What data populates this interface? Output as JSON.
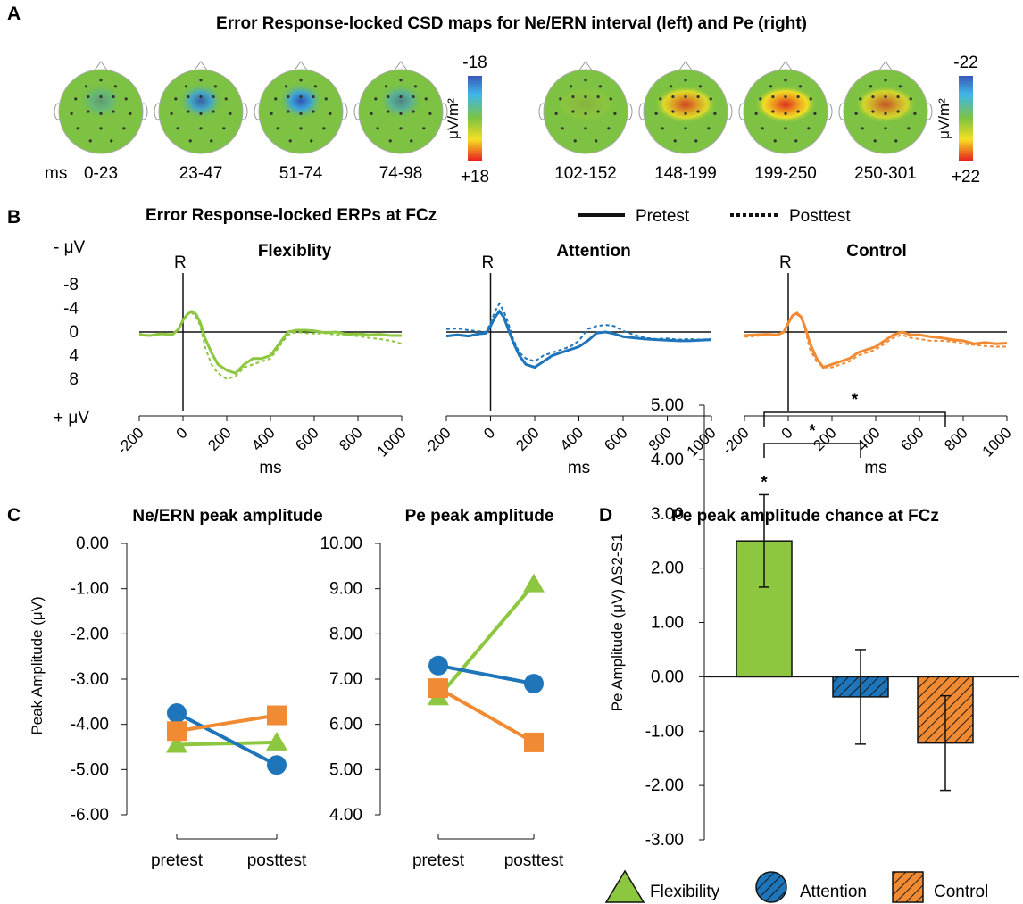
{
  "panel_a": {
    "letter": "A",
    "title": "Error Response-locked CSD maps for Ne/ERN interval (left) and Pe (right)",
    "time_unit": "ms",
    "colorbar_unit": "μV/m²",
    "ern_maps": {
      "labels": [
        "0-23",
        "23-47",
        "51-74",
        "74-98"
      ],
      "blob_strength": [
        0.35,
        0.85,
        0.95,
        0.55
      ],
      "colorbar_min": "-18",
      "colorbar_max": "+18"
    },
    "pe_maps": {
      "labels": [
        "102-152",
        "148-199",
        "199-250",
        "250-301"
      ],
      "blob_strength": [
        0.1,
        0.8,
        0.95,
        0.7
      ],
      "colorbar_min": "-22",
      "colorbar_max": "+22"
    }
  },
  "panel_b": {
    "letter": "B",
    "title": "Error Response-locked ERPs at FCz",
    "legend": {
      "pretest": "Pretest",
      "posttest": "Posttest"
    },
    "y_axis_top": "- μV",
    "y_axis_bottom": "+ μV",
    "response_marker": "R",
    "xlabel": "ms",
    "colors": {
      "flexibility": "#8dc63f",
      "attention": "#1f75b9",
      "control": "#f08a33"
    }
  },
  "panel_c": {
    "letter": "C",
    "ylabel": "Peak Amplitude (μV)",
    "colors": {
      "flexibility": "#8dc63f",
      "attention": "#1f75b9",
      "control": "#f08a33"
    }
  },
  "panel_d": {
    "letter": "D",
    "significance_marker": "*",
    "legend": [
      "Flexibility",
      "Attention",
      "Control"
    ],
    "colors": {
      "flexibility": "#8dc63f",
      "attention": "#1f75b9",
      "control": "#f08a33"
    }
  },
  "chart_data": [
    {
      "type": "line",
      "panel": "B",
      "title": "Flexiblity",
      "xlabel": "ms",
      "xticks": [
        -200,
        0,
        200,
        400,
        600,
        800,
        1000
      ],
      "yticks": [
        -8,
        -4,
        0,
        4,
        8
      ],
      "ylim": [
        -10,
        10
      ],
      "y_inverted": true,
      "series": [
        {
          "name": "Pretest",
          "style": "solid",
          "x": [
            -200,
            -150,
            -100,
            -50,
            -20,
            0,
            20,
            40,
            60,
            80,
            100,
            130,
            160,
            200,
            240,
            280,
            320,
            360,
            400,
            440,
            480,
            520,
            560,
            600,
            650,
            700,
            750,
            800,
            850,
            900,
            950,
            1000
          ],
          "y": [
            0.5,
            0.6,
            0.3,
            0.5,
            -0.5,
            -2.0,
            -3.0,
            -3.5,
            -3.0,
            -1.5,
            1.0,
            3.5,
            5.5,
            6.5,
            7.0,
            5.5,
            4.5,
            4.5,
            4.0,
            2.0,
            0.0,
            -0.3,
            -0.3,
            -0.2,
            0.1,
            0.0,
            0.4,
            0.3,
            0.5,
            0.4,
            0.6,
            0.6
          ]
        },
        {
          "name": "Posttest",
          "style": "dashed",
          "x": [
            -200,
            -150,
            -100,
            -50,
            -20,
            0,
            20,
            40,
            60,
            80,
            100,
            130,
            160,
            200,
            240,
            280,
            320,
            360,
            400,
            440,
            480,
            520,
            560,
            600,
            650,
            700,
            750,
            800,
            850,
            900,
            950,
            1000
          ],
          "y": [
            0.3,
            0.6,
            0.4,
            0.4,
            -0.5,
            -2.0,
            -3.0,
            -3.3,
            -2.5,
            -1.0,
            2.5,
            5.5,
            7.0,
            8.0,
            7.5,
            6.0,
            5.5,
            5.0,
            4.5,
            2.5,
            0.5,
            0.0,
            0.2,
            0.3,
            0.2,
            0.5,
            0.5,
            0.7,
            1.0,
            1.2,
            1.5,
            2.0
          ]
        }
      ]
    },
    {
      "type": "line",
      "panel": "B",
      "title": "Attention",
      "xlabel": "ms",
      "xticks": [
        -200,
        0,
        200,
        400,
        600,
        800,
        1000
      ],
      "yticks": [
        -8,
        -4,
        0,
        4,
        8
      ],
      "ylim": [
        -10,
        10
      ],
      "y_inverted": true,
      "series": [
        {
          "name": "Pretest",
          "style": "solid",
          "x": [
            -200,
            -150,
            -100,
            -50,
            -20,
            0,
            20,
            40,
            60,
            80,
            100,
            130,
            160,
            200,
            240,
            280,
            320,
            360,
            400,
            440,
            480,
            520,
            560,
            600,
            650,
            700,
            750,
            800,
            850,
            900,
            950,
            1000
          ],
          "y": [
            0.7,
            0.5,
            0.7,
            0.3,
            0.2,
            -1.0,
            -2.5,
            -3.5,
            -2.5,
            -0.5,
            1.5,
            4.0,
            5.5,
            6.0,
            5.0,
            4.0,
            3.5,
            3.0,
            2.5,
            1.5,
            0.2,
            0.0,
            0.3,
            0.8,
            1.0,
            1.2,
            1.3,
            1.4,
            1.5,
            1.5,
            1.4,
            1.3
          ]
        },
        {
          "name": "Posttest",
          "style": "dashed",
          "x": [
            -200,
            -150,
            -100,
            -50,
            -20,
            0,
            20,
            40,
            60,
            80,
            100,
            130,
            160,
            200,
            240,
            280,
            320,
            360,
            400,
            440,
            480,
            520,
            560,
            600,
            650,
            700,
            750,
            800,
            850,
            900,
            950,
            1000
          ],
          "y": [
            -0.5,
            -0.6,
            -0.3,
            -0.1,
            0.0,
            -1.5,
            -3.5,
            -4.8,
            -3.5,
            -1.5,
            1.0,
            3.5,
            4.5,
            5.0,
            4.0,
            3.5,
            3.0,
            2.5,
            1.5,
            -0.5,
            -1.0,
            -1.2,
            -1.0,
            -0.2,
            0.5,
            1.0,
            1.2,
            1.1,
            1.3,
            1.2,
            1.3,
            1.2
          ]
        }
      ]
    },
    {
      "type": "line",
      "panel": "B",
      "title": "Control",
      "xlabel": "ms",
      "xticks": [
        -200,
        0,
        200,
        400,
        600,
        800,
        1000
      ],
      "yticks": [
        -8,
        -4,
        0,
        4,
        8
      ],
      "ylim": [
        -10,
        10
      ],
      "y_inverted": true,
      "series": [
        {
          "name": "Pretest",
          "style": "solid",
          "x": [
            -200,
            -150,
            -100,
            -50,
            -20,
            0,
            20,
            40,
            60,
            80,
            100,
            130,
            160,
            200,
            240,
            280,
            320,
            360,
            400,
            440,
            480,
            520,
            560,
            600,
            650,
            700,
            750,
            800,
            850,
            900,
            950,
            1000
          ],
          "y": [
            0.6,
            0.5,
            0.4,
            0.5,
            0.0,
            -1.5,
            -2.8,
            -3.2,
            -2.5,
            -0.5,
            2.0,
            4.5,
            6.0,
            5.5,
            5.0,
            4.5,
            3.5,
            3.0,
            2.5,
            1.5,
            0.5,
            0.0,
            0.5,
            0.5,
            0.8,
            1.0,
            1.3,
            1.5,
            2.0,
            1.8,
            2.0,
            1.9
          ]
        },
        {
          "name": "Posttest",
          "style": "dashed",
          "x": [
            -200,
            -150,
            -100,
            -50,
            -20,
            0,
            20,
            40,
            60,
            80,
            100,
            130,
            160,
            200,
            240,
            280,
            320,
            360,
            400,
            440,
            480,
            520,
            560,
            600,
            650,
            700,
            750,
            800,
            850,
            900,
            950,
            1000
          ],
          "y": [
            0.8,
            0.7,
            0.5,
            0.6,
            0.0,
            -1.5,
            -2.8,
            -3.0,
            -2.3,
            0.0,
            3.0,
            5.0,
            6.0,
            6.0,
            5.5,
            5.0,
            4.0,
            3.5,
            3.0,
            2.0,
            1.0,
            0.5,
            1.0,
            1.2,
            1.5,
            1.5,
            1.6,
            2.0,
            2.2,
            2.4,
            2.5,
            2.5
          ]
        }
      ]
    },
    {
      "type": "line",
      "panel": "C",
      "title": "Ne/ERN peak amplitude",
      "categories": [
        "pretest",
        "posttest"
      ],
      "ylim": [
        -6.0,
        0.0
      ],
      "yticks": [
        "0.00",
        "-1.00",
        "-2.00",
        "-3.00",
        "-4.00",
        "-5.00",
        "-6.00"
      ],
      "series": [
        {
          "group": "flexibility",
          "marker": "triangle",
          "values": [
            -4.45,
            -4.4
          ]
        },
        {
          "group": "attention",
          "marker": "circle",
          "values": [
            -3.75,
            -4.9
          ]
        },
        {
          "group": "control",
          "marker": "square",
          "values": [
            -4.15,
            -3.8
          ]
        }
      ]
    },
    {
      "type": "line",
      "panel": "C",
      "title": "Pe peak amplitude",
      "categories": [
        "pretest",
        "posttest"
      ],
      "ylim": [
        4.0,
        10.0
      ],
      "yticks": [
        "10.00",
        "9.00",
        "8.00",
        "7.00",
        "6.00",
        "5.00",
        "4.00"
      ],
      "series": [
        {
          "group": "flexibility",
          "marker": "triangle",
          "values": [
            6.6,
            9.1
          ]
        },
        {
          "group": "attention",
          "marker": "circle",
          "values": [
            7.3,
            6.9
          ]
        },
        {
          "group": "control",
          "marker": "square",
          "values": [
            6.8,
            5.6
          ]
        }
      ]
    },
    {
      "type": "bar",
      "panel": "D",
      "title": "Pe peak amplitude chance at FCz",
      "ylabel": "Pe Amplitude (μV) ∆S2-S1",
      "categories": [
        "Flexibility",
        "Attention",
        "Control"
      ],
      "values": [
        2.5,
        -0.37,
        -1.22
      ],
      "error": [
        0.85,
        0.87,
        0.87
      ],
      "ylim": [
        -3.0,
        5.0
      ],
      "yticks": [
        "5.00",
        "4.00",
        "3.00",
        "2.00",
        "1.00",
        "0.00",
        "-1.00",
        "-2.00",
        "-3.00"
      ],
      "significance": [
        {
          "from": "Flexibility",
          "to": "Attention",
          "label": "*"
        },
        {
          "from": "Flexibility",
          "to": "Control",
          "label": "*"
        }
      ]
    }
  ]
}
